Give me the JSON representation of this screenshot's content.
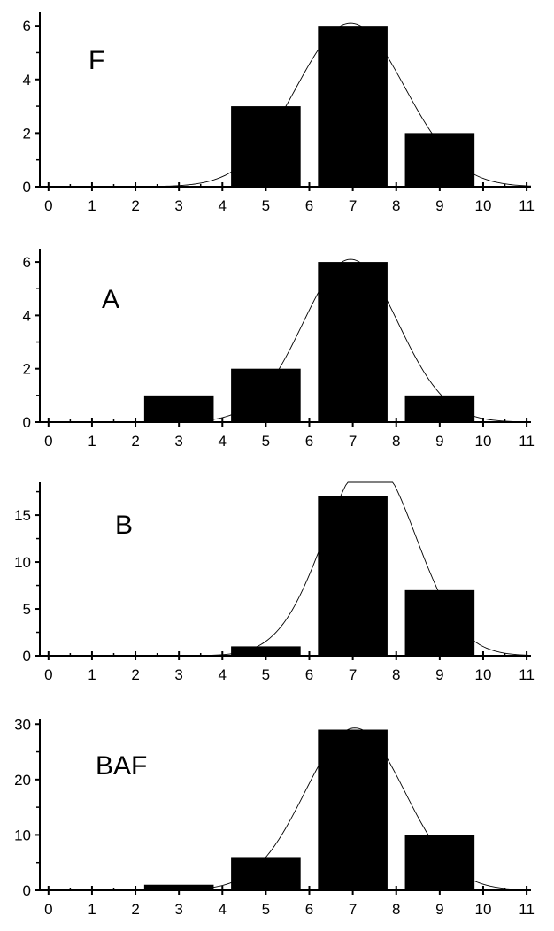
{
  "colors": {
    "bar": "#000000",
    "axis": "#000000",
    "curve": "#000000",
    "background": "#ffffff"
  },
  "chart_data": [
    {
      "type": "bar",
      "panel_label": "F",
      "x": [
        3,
        5,
        7,
        9
      ],
      "values": [
        0,
        3,
        6,
        2
      ],
      "bar_width": 1.6,
      "xlim": [
        -0.2,
        11.1
      ],
      "ylim": [
        0,
        6.5
      ],
      "xticks": [
        0,
        1,
        2,
        3,
        4,
        5,
        6,
        7,
        8,
        9,
        10,
        11
      ],
      "xtick_labels": [
        "0",
        "1",
        "2",
        "3",
        "4",
        "5",
        "6",
        "7",
        "8",
        "9",
        "10",
        "11"
      ],
      "yticks": [
        0,
        2,
        4,
        6
      ],
      "ytick_labels": [
        "0",
        "2",
        "4",
        "6"
      ],
      "y_minor_ticks": [
        1,
        3,
        5
      ],
      "fit_curve": {
        "type": "gaussian",
        "center": 6.95,
        "sigma": 1.25,
        "peak": 6.1
      },
      "grid": false
    },
    {
      "type": "bar",
      "panel_label": "A",
      "x": [
        3,
        5,
        7,
        9
      ],
      "values": [
        1,
        2,
        6,
        1
      ],
      "bar_width": 1.6,
      "xlim": [
        -0.2,
        11.1
      ],
      "ylim": [
        0,
        6.5
      ],
      "xticks": [
        0,
        1,
        2,
        3,
        4,
        5,
        6,
        7,
        8,
        9,
        10,
        11
      ],
      "xtick_labels": [
        "0",
        "1",
        "2",
        "3",
        "4",
        "5",
        "6",
        "7",
        "8",
        "9",
        "10",
        "11"
      ],
      "yticks": [
        0,
        2,
        4,
        6
      ],
      "ytick_labels": [
        "0",
        "2",
        "4",
        "6"
      ],
      "y_minor_ticks": [
        1,
        3,
        5
      ],
      "fit_curve": {
        "type": "gaussian",
        "center": 6.95,
        "sigma": 1.1,
        "peak": 6.1
      },
      "grid": false
    },
    {
      "type": "bar",
      "panel_label": "B",
      "x": [
        3,
        5,
        7,
        9
      ],
      "values": [
        0,
        1,
        17,
        7
      ],
      "bar_width": 1.6,
      "xlim": [
        -0.2,
        11.1
      ],
      "ylim": [
        0,
        18.5
      ],
      "xticks": [
        0,
        1,
        2,
        3,
        4,
        5,
        6,
        7,
        8,
        9,
        10,
        11
      ],
      "xtick_labels": [
        "0",
        "1",
        "2",
        "3",
        "4",
        "5",
        "6",
        "7",
        "8",
        "9",
        "10",
        "11"
      ],
      "yticks": [
        0,
        5,
        10,
        15
      ],
      "ytick_labels": [
        "0",
        "5",
        "10",
        "15"
      ],
      "y_minor_ticks": [
        2.5,
        7.5,
        12.5,
        17.5
      ],
      "fit_curve": {
        "type": "gaussian",
        "center": 7.4,
        "sigma": 1.05,
        "peak": 21
      },
      "grid": false
    },
    {
      "type": "bar",
      "panel_label": "BAF",
      "x": [
        3,
        5,
        7,
        9
      ],
      "values": [
        1,
        6,
        29,
        10
      ],
      "bar_width": 1.6,
      "xlim": [
        -0.2,
        11.1
      ],
      "ylim": [
        0,
        31
      ],
      "xticks": [
        0,
        1,
        2,
        3,
        4,
        5,
        6,
        7,
        8,
        9,
        10,
        11
      ],
      "xtick_labels": [
        "0",
        "1",
        "2",
        "3",
        "4",
        "5",
        "6",
        "7",
        "8",
        "9",
        "10",
        "11"
      ],
      "yticks": [
        0,
        10,
        20,
        30
      ],
      "ytick_labels": [
        "0",
        "10",
        "20",
        "30"
      ],
      "y_minor_ticks": [
        5,
        15,
        25
      ],
      "fit_curve": {
        "type": "gaussian",
        "center": 7.05,
        "sigma": 1.15,
        "peak": 29.3
      },
      "grid": false
    }
  ]
}
